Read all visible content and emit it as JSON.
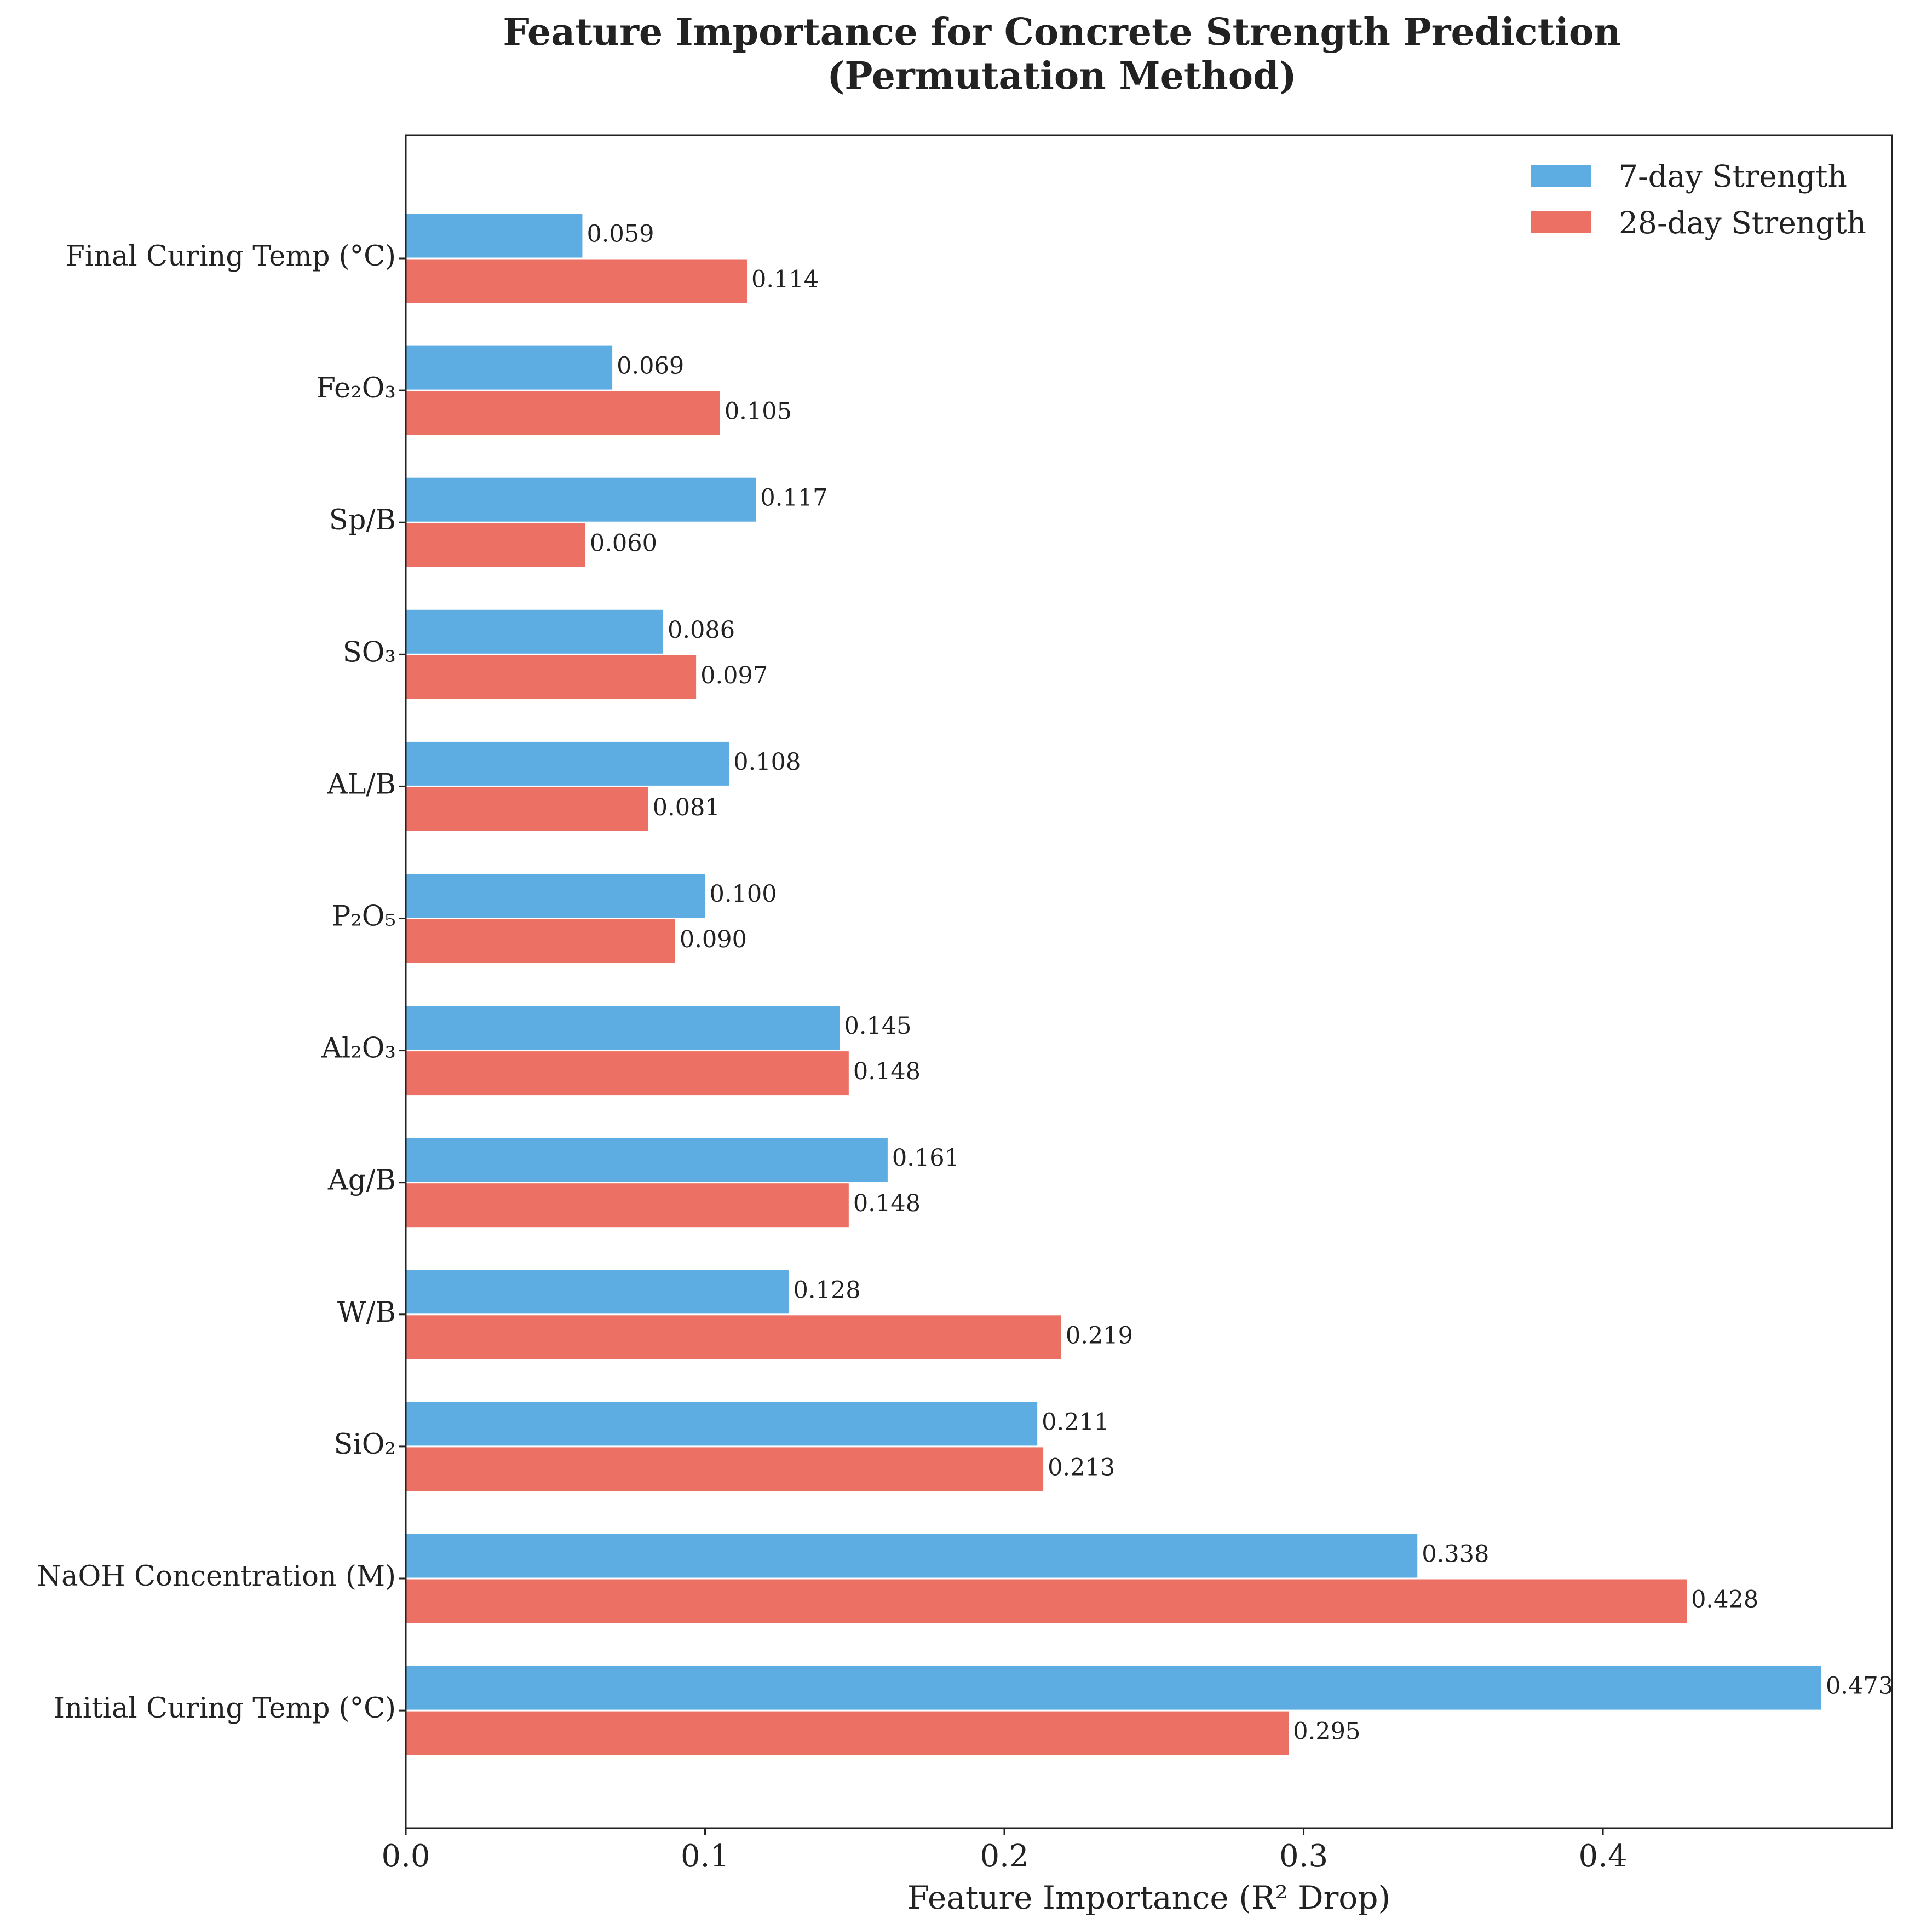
{
  "chart_data": {
    "type": "bar",
    "orientation": "horizontal",
    "title": "Feature Importance for Concrete Strength Prediction",
    "subtitle": "(Permutation Method)",
    "xlabel": "Feature Importance (R² Drop)",
    "ylabel": "",
    "xlim": [
      0,
      0.4966
    ],
    "xticks": [
      "0.0",
      "0.1",
      "0.2",
      "0.3",
      "0.4"
    ],
    "grid": false,
    "legend_position": "top-right",
    "categories": [
      "Final Curing Temp (°C)",
      "Fe₂O₃",
      "Sp/B",
      "SO₃",
      "AL/B",
      "P₂O₅",
      "Al₂O₃",
      "Ag/B",
      "W/B",
      "SiO₂",
      "NaOH Concentration (M)",
      "Initial Curing Temp (°C)"
    ],
    "series": [
      {
        "name": "7-day Strength",
        "color": "#5dade2",
        "values": [
          0.059,
          0.069,
          0.117,
          0.086,
          0.108,
          0.1,
          0.145,
          0.161,
          0.128,
          0.211,
          0.338,
          0.473
        ],
        "labels": [
          "0.059",
          "0.069",
          "0.117",
          "0.086",
          "0.108",
          "0.100",
          "0.145",
          "0.161",
          "0.128",
          "0.211",
          "0.338",
          "0.473"
        ]
      },
      {
        "name": "28-day Strength",
        "color": "#ec7063",
        "values": [
          0.114,
          0.105,
          0.06,
          0.097,
          0.081,
          0.09,
          0.148,
          0.148,
          0.219,
          0.213,
          0.428,
          0.295
        ],
        "labels": [
          "0.114",
          "0.105",
          "0.060",
          "0.097",
          "0.081",
          "0.090",
          "0.148",
          "0.148",
          "0.219",
          "0.213",
          "0.428",
          "0.295"
        ]
      }
    ]
  }
}
